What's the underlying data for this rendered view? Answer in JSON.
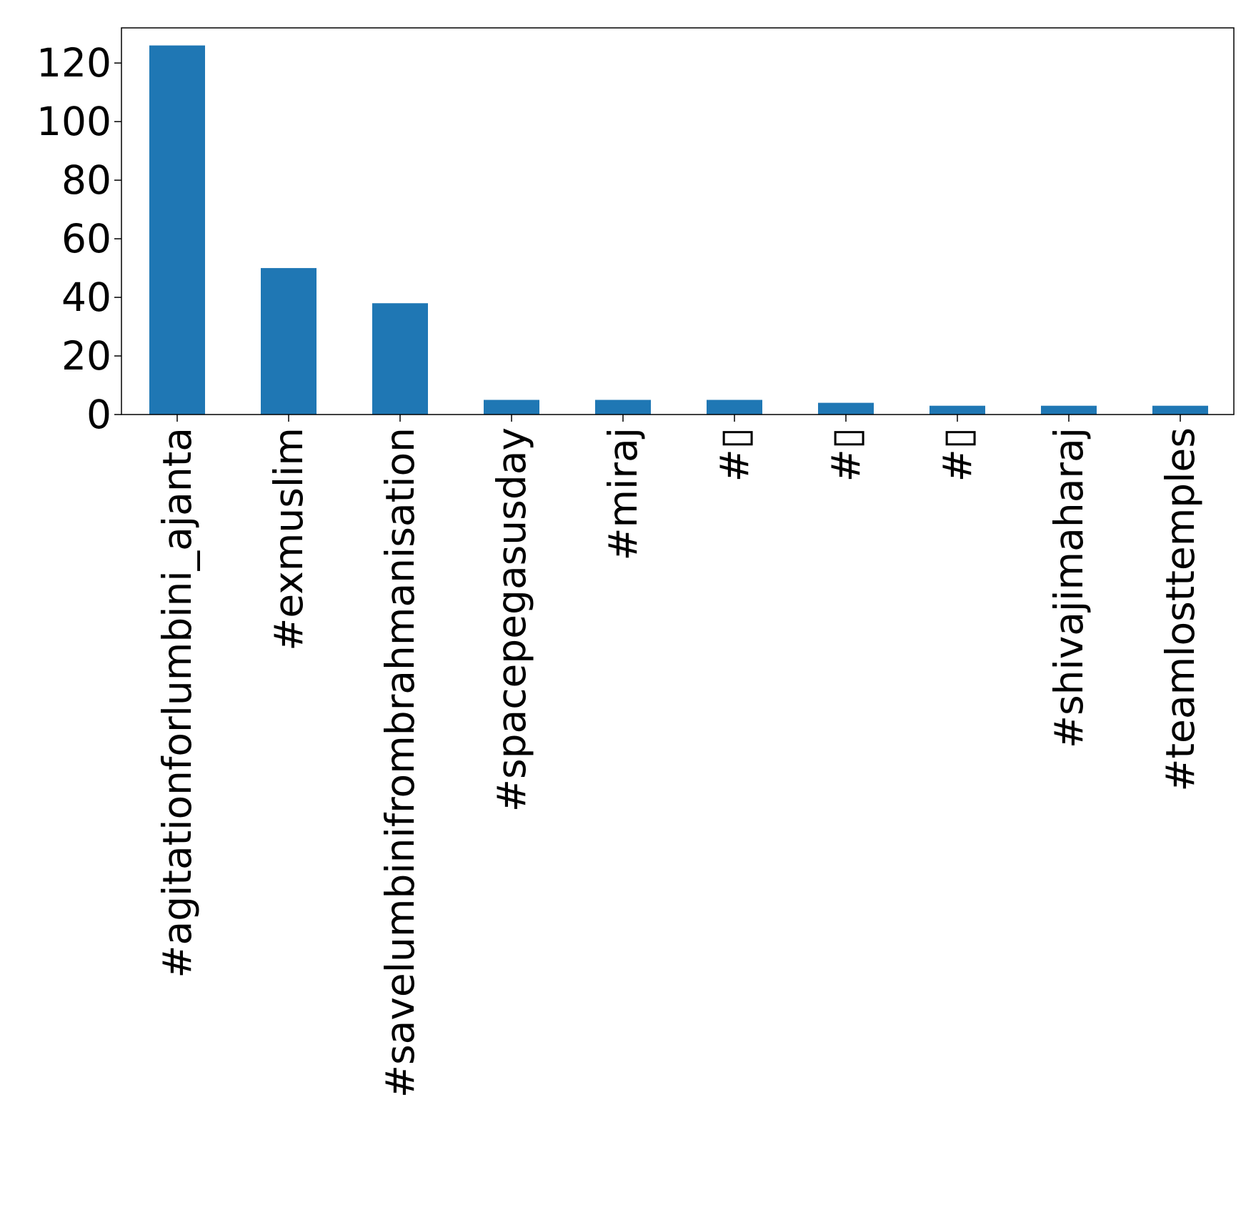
{
  "chart_data": {
    "type": "bar",
    "title": "",
    "xlabel": "",
    "ylabel": "",
    "categories": [
      "#agitationforlumbini_ajanta",
      "#exmuslim",
      "#savelumbinifrombrahmanisation",
      "#spacepegasusday",
      "#miraj",
      "#▯",
      "#▯",
      "#▯",
      "#shivajimaharaj",
      "#teamlosttemples"
    ],
    "values": [
      126,
      50,
      38,
      5,
      5,
      5,
      4,
      3,
      3,
      3
    ],
    "ylim": [
      0,
      132
    ],
    "yticks": [
      0,
      20,
      40,
      60,
      80,
      100,
      120
    ],
    "ytick_labels": [
      "0",
      "20",
      "40",
      "60",
      "80",
      "100",
      "120"
    ],
    "grid": false,
    "legend": "none",
    "bar_color": "#1f77b4"
  }
}
